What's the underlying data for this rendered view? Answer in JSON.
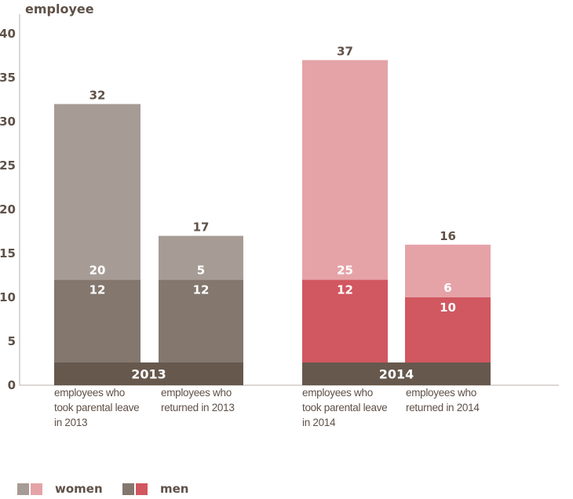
{
  "chart_data": {
    "type": "bar",
    "stacked": true,
    "ylabel": "employee",
    "ylim": [
      0,
      40
    ],
    "yticks": [
      0,
      5,
      10,
      15,
      20,
      25,
      30,
      35,
      40
    ],
    "groups": [
      {
        "year": "2013",
        "colors": {
          "women": "#a69c95",
          "men": "#83776e"
        },
        "bars": [
          {
            "label": "employees who\ntook parental leave\nin 2013",
            "total": 32,
            "women": 20,
            "men": 12
          },
          {
            "label": "employees who\nreturned in 2013",
            "total": 17,
            "women": 5,
            "men": 12
          }
        ]
      },
      {
        "year": "2014",
        "colors": {
          "women": "#e5a3a8",
          "men": "#d15760"
        },
        "bars": [
          {
            "label": "employees who\ntook parental leave\nin 2014",
            "total": 37,
            "women": 25,
            "men": 12
          },
          {
            "label": "employees who\nreturned in 2014",
            "total": 16,
            "women": 6,
            "men": 10
          }
        ]
      }
    ],
    "year_band_color": "#67584d",
    "legend": [
      {
        "name": "women",
        "colors": [
          "#a69c95",
          "#e5a3a8"
        ]
      },
      {
        "name": "men",
        "colors": [
          "#83776e",
          "#d15760"
        ]
      }
    ]
  }
}
